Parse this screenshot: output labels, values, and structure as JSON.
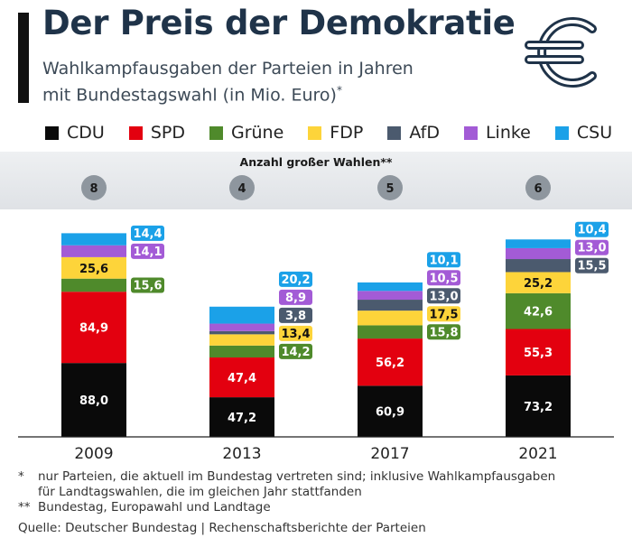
{
  "title": "Der Preis der Demokratie",
  "subtitle_line1": "Wahlkampfausgaben der Parteien in Jahren",
  "subtitle_line2": "mit Bundestagswahl (in Mio. Euro)",
  "subtitle_mark": "*",
  "icon": "euro-icon",
  "colors": {
    "CDU": "#0a0a0a",
    "SPD": "#e3000f",
    "Grüne": "#4f8a2b",
    "FDP": "#fdd43a",
    "AfD": "#4b5a6e",
    "Linke": "#a35bd6",
    "CSU": "#1ba1e8",
    "badge": "#8e969e",
    "band": "#e6e9ec",
    "title": "#1f3349"
  },
  "legend": [
    "CDU",
    "SPD",
    "Grüne",
    "FDP",
    "AfD",
    "Linke",
    "CSU"
  ],
  "chart_data": {
    "type": "bar",
    "stacked": true,
    "categories": [
      "2009",
      "2013",
      "2017",
      "2021"
    ],
    "elections_label": "Anzahl großer Wahlen**",
    "elections": [
      8,
      4,
      5,
      6
    ],
    "series": [
      {
        "name": "CDU",
        "values": [
          88.0,
          47.2,
          60.9,
          73.2
        ],
        "labels": [
          "88,0",
          "47,2",
          "60,9",
          "73,2"
        ]
      },
      {
        "name": "SPD",
        "values": [
          84.9,
          47.4,
          56.2,
          55.3
        ],
        "labels": [
          "84,9",
          "47,4",
          "56,2",
          "55,3"
        ]
      },
      {
        "name": "Grüne",
        "values": [
          15.6,
          14.2,
          15.8,
          42.6
        ],
        "labels": [
          "15,6",
          "14,2",
          "15,8",
          "42,6"
        ]
      },
      {
        "name": "FDP",
        "values": [
          25.6,
          13.4,
          17.5,
          25.2
        ],
        "labels": [
          "25,6",
          "13,4",
          "17,5",
          "25,2"
        ]
      },
      {
        "name": "AfD",
        "values": [
          null,
          3.8,
          13.0,
          15.5
        ],
        "labels": [
          null,
          "3,8",
          "13,0",
          "15,5"
        ]
      },
      {
        "name": "Linke",
        "values": [
          14.1,
          8.9,
          10.5,
          13.0
        ],
        "labels": [
          "14,1",
          "8,9",
          "10,5",
          "13,0"
        ]
      },
      {
        "name": "CSU",
        "values": [
          14.4,
          20.2,
          10.1,
          10.4
        ],
        "labels": [
          "14,4",
          "20,2",
          "10,1",
          "10,4"
        ]
      }
    ]
  },
  "footnotes": {
    "fn1_mark": "*",
    "fn1_line1": "nur Parteien, die aktuell im Bundestag vertreten sind; inklusive Wahlkampfausgaben",
    "fn1_line2": "für Landtagswahlen, die im gleichen Jahr stattfanden",
    "fn2_mark": "**",
    "fn2_text": "Bundestag, Europawahl und Landtage",
    "source": "Quelle: Deutscher Bundestag | Rechenschaftsberichte der Parteien"
  }
}
